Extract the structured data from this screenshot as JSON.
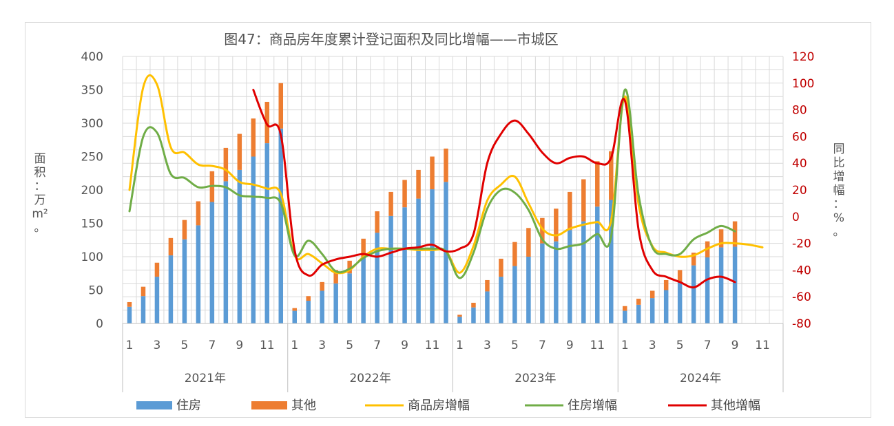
{
  "chart_data": {
    "type": "bar",
    "title": "图47：商品房年度累计登记面积及同比增幅——市城区",
    "ylabel": [
      "面",
      "积",
      "：",
      "万",
      "m²",
      "。"
    ],
    "y2label": [
      "同",
      "比",
      "增",
      "幅",
      "：",
      "%",
      "。"
    ],
    "ylim": [
      0,
      400
    ],
    "yticks": [
      "0",
      "50",
      "100",
      "150",
      "200",
      "250",
      "300",
      "350",
      "400"
    ],
    "y2lim": [
      -80,
      120
    ],
    "y2ticks": [
      "-80",
      "-60",
      "-40",
      "-20",
      "0",
      "20",
      "40",
      "60",
      "80",
      "100",
      "120"
    ],
    "month_labels": [
      "1",
      "3",
      "5",
      "7",
      "9",
      "11"
    ],
    "years": [
      "2021年",
      "2022年",
      "2023年",
      "2024年"
    ],
    "grid": true,
    "legend_position": "bottom",
    "colors": {
      "residential": "#5b9bd5",
      "other": "#ed7d31",
      "commercial_growth": "#ffc000",
      "residential_growth": "#70ad47",
      "other_growth": "#e00000",
      "grid": "#d9d9d9",
      "axis": "#bfbfbf"
    },
    "series": [
      {
        "name": "住房",
        "kind": "bar",
        "stack": "area",
        "values": [
          25,
          41,
          70,
          102,
          126,
          147,
          182,
          213,
          230,
          250,
          270,
          292,
          19,
          34,
          49,
          60,
          75,
          100,
          136,
          161,
          174,
          187,
          201,
          212,
          10,
          24,
          48,
          70,
          86,
          100,
          120,
          123,
          140,
          153,
          175,
          185,
          19,
          28,
          38,
          50,
          63,
          87,
          99,
          114,
          115,
          null,
          null,
          null
        ]
      },
      {
        "name": "其他",
        "kind": "bar",
        "stack": "area",
        "values": [
          7,
          14,
          21,
          26,
          29,
          36,
          46,
          50,
          54,
          57,
          62,
          68,
          4,
          7,
          13,
          20,
          19,
          27,
          32,
          36,
          41,
          43,
          49,
          50,
          3,
          7,
          17,
          27,
          36,
          43,
          38,
          49,
          57,
          63,
          68,
          73,
          7,
          9,
          11,
          15,
          17,
          19,
          24,
          27,
          38,
          null,
          null,
          null
        ]
      },
      {
        "name": "商品房增幅",
        "kind": "line",
        "axis": "right",
        "values": [
          20,
          97,
          99,
          52,
          48,
          39,
          38,
          35,
          26,
          24,
          21,
          17,
          -29,
          -28,
          -35,
          -42,
          -40,
          -30,
          -24,
          -24,
          -24,
          -25,
          -25,
          -26,
          -42,
          -22,
          12,
          24,
          30,
          10,
          -9,
          -14,
          -9,
          -6,
          -4,
          -3,
          90,
          9,
          -22,
          -27,
          -30,
          -29,
          -24,
          -20,
          -20,
          -21,
          -23,
          null
        ]
      },
      {
        "name": "住房增幅",
        "kind": "line",
        "axis": "right",
        "values": [
          4,
          60,
          63,
          32,
          29,
          22,
          23,
          22,
          16,
          15,
          14,
          10,
          -29,
          -18,
          -28,
          -41,
          -39,
          -31,
          -26,
          -24,
          -24,
          -24,
          -24,
          -26,
          -46,
          -27,
          6,
          20,
          18,
          5,
          -17,
          -24,
          -22,
          -20,
          -13,
          -15,
          95,
          16,
          -23,
          -28,
          -28,
          -17,
          -12,
          -7,
          -11,
          null,
          null,
          null
        ]
      },
      {
        "name": "其他增幅",
        "kind": "line",
        "axis": "right",
        "values": [
          null,
          null,
          null,
          null,
          null,
          null,
          null,
          null,
          null,
          95,
          69,
          61,
          -25,
          -44,
          -36,
          -32,
          -30,
          -28,
          -30,
          -27,
          -24,
          -23,
          -21,
          -26,
          -24,
          -13,
          40,
          62,
          72,
          62,
          48,
          40,
          44,
          45,
          40,
          44,
          87,
          -10,
          -40,
          -45,
          -49,
          -53,
          -47,
          -45,
          -49,
          null,
          null,
          null
        ]
      }
    ]
  }
}
